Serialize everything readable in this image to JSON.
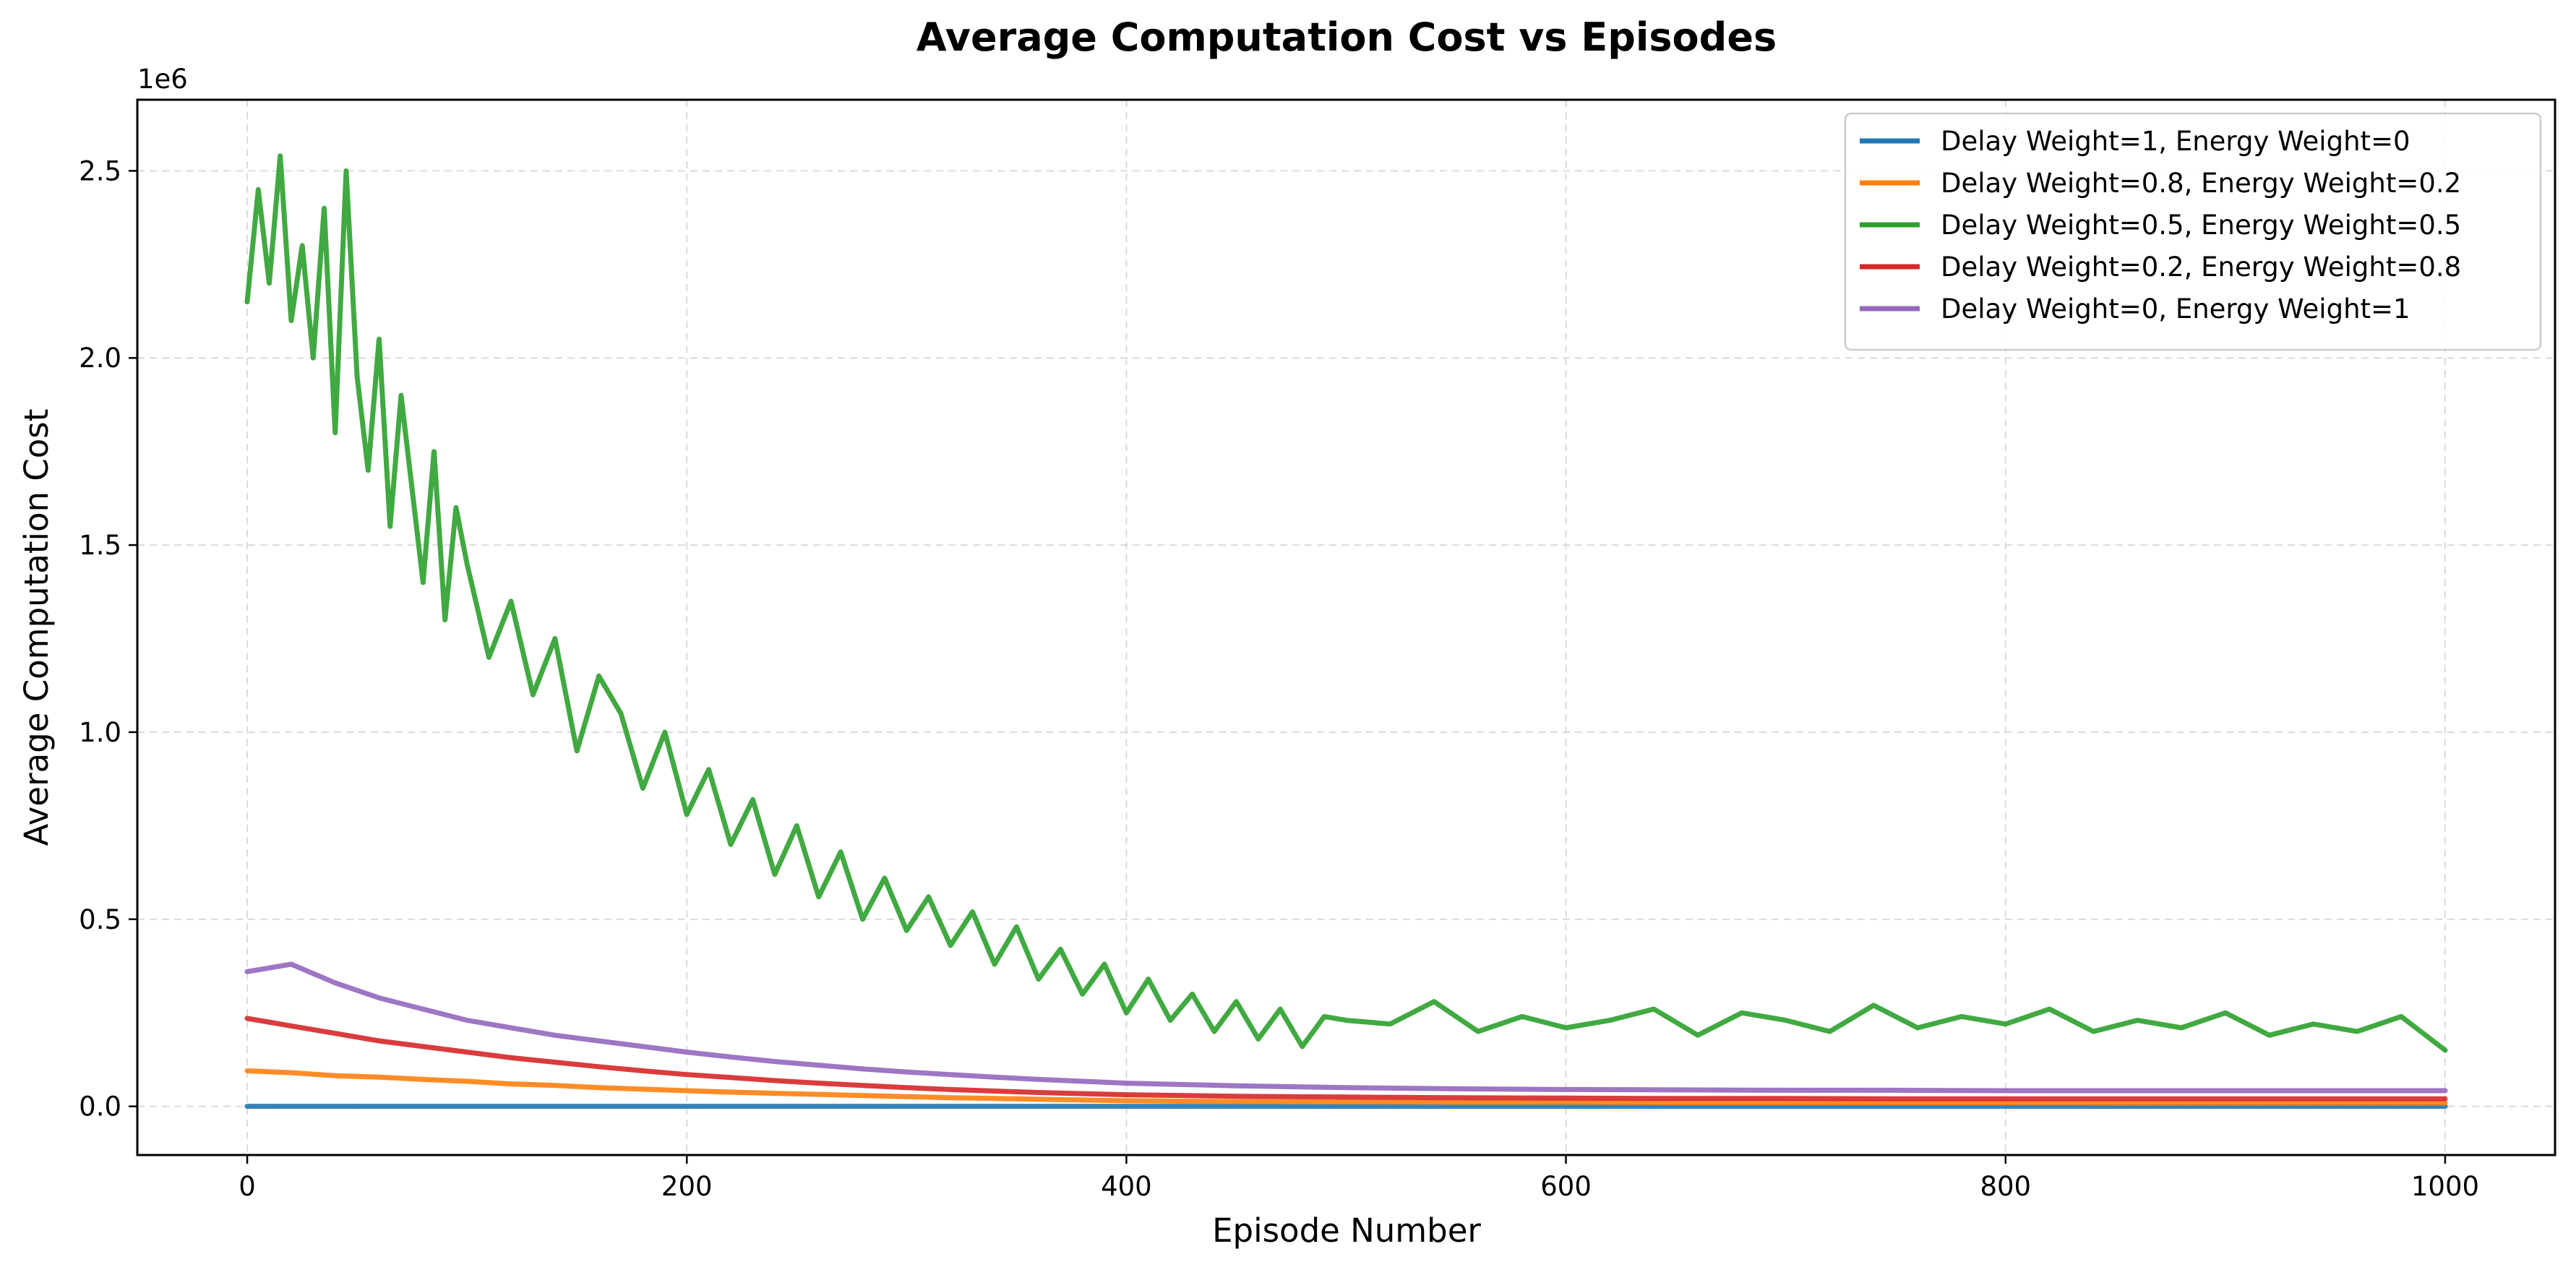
{
  "chart_data": {
    "type": "line",
    "title": "Average Computation Cost vs Episodes",
    "xlabel": "Episode Number",
    "ylabel": "Average Computation Cost",
    "y_offset_label": "1e6",
    "xlim": [
      -50,
      1050
    ],
    "ylim": [
      -130000,
      2690000
    ],
    "x_ticks": [
      0,
      200,
      400,
      600,
      800,
      1000
    ],
    "x_tick_labels": [
      "0",
      "200",
      "400",
      "600",
      "800",
      "1000"
    ],
    "y_ticks": [
      0,
      500000,
      1000000,
      1500000,
      2000000,
      2500000
    ],
    "y_tick_labels": [
      "0.0",
      "0.5",
      "1.0",
      "1.5",
      "2.0",
      "2.5"
    ],
    "grid": true,
    "legend_position": "top-right",
    "series": [
      {
        "name": "Delay Weight=1, Energy Weight=0",
        "color": "#1f77b4",
        "x": [
          0,
          100,
          200,
          300,
          400,
          500,
          600,
          700,
          800,
          900,
          1000
        ],
        "y": [
          200,
          190,
          180,
          170,
          160,
          150,
          140,
          130,
          120,
          110,
          100
        ]
      },
      {
        "name": "Delay Weight=0.8, Energy Weight=0.2",
        "color": "#ff7f0e",
        "x": [
          0,
          20,
          40,
          60,
          80,
          100,
          120,
          140,
          160,
          180,
          200,
          220,
          240,
          260,
          280,
          300,
          320,
          340,
          360,
          380,
          400,
          450,
          500,
          550,
          600,
          650,
          700,
          750,
          800,
          850,
          900,
          950,
          1000
        ],
        "y": [
          95000,
          90000,
          82000,
          78000,
          72000,
          67000,
          60000,
          56000,
          50000,
          46000,
          42000,
          38000,
          35000,
          32000,
          29000,
          26000,
          23000,
          21000,
          19000,
          17000,
          15000,
          13000,
          12000,
          11000,
          11000,
          10000,
          10000,
          10000,
          10000,
          9000,
          9000,
          9000,
          9000
        ]
      },
      {
        "name": "Delay Weight=0.5, Energy Weight=0.5",
        "color": "#2ca02c",
        "x": [
          0,
          5,
          10,
          15,
          20,
          25,
          30,
          35,
          40,
          45,
          50,
          55,
          60,
          65,
          70,
          75,
          80,
          85,
          90,
          95,
          100,
          110,
          120,
          130,
          140,
          150,
          160,
          170,
          180,
          190,
          200,
          210,
          220,
          230,
          240,
          250,
          260,
          270,
          280,
          290,
          300,
          310,
          320,
          330,
          340,
          350,
          360,
          370,
          380,
          390,
          400,
          410,
          420,
          430,
          440,
          450,
          460,
          470,
          480,
          490,
          500,
          520,
          540,
          560,
          580,
          600,
          620,
          640,
          660,
          680,
          700,
          720,
          740,
          760,
          780,
          800,
          820,
          840,
          860,
          880,
          900,
          920,
          940,
          960,
          980,
          1000
        ],
        "y": [
          2150000,
          2450000,
          2200000,
          2540000,
          2100000,
          2300000,
          2000000,
          2400000,
          1800000,
          2500000,
          1950000,
          1700000,
          2050000,
          1550000,
          1900000,
          1650000,
          1400000,
          1750000,
          1300000,
          1600000,
          1450000,
          1200000,
          1350000,
          1100000,
          1250000,
          950000,
          1150000,
          1050000,
          850000,
          1000000,
          780000,
          900000,
          700000,
          820000,
          620000,
          750000,
          560000,
          680000,
          500000,
          610000,
          470000,
          560000,
          430000,
          520000,
          380000,
          480000,
          340000,
          420000,
          300000,
          380000,
          250000,
          340000,
          230000,
          300000,
          200000,
          280000,
          180000,
          260000,
          160000,
          240000,
          230000,
          220000,
          280000,
          200000,
          240000,
          210000,
          230000,
          260000,
          190000,
          250000,
          230000,
          200000,
          270000,
          210000,
          240000,
          220000,
          260000,
          200000,
          230000,
          210000,
          250000,
          190000,
          220000,
          200000,
          240000,
          150000
        ]
      },
      {
        "name": "Delay Weight=0.2, Energy Weight=0.8",
        "color": "#d62728",
        "x": [
          0,
          20,
          40,
          60,
          80,
          100,
          120,
          140,
          160,
          180,
          200,
          220,
          240,
          260,
          280,
          300,
          320,
          340,
          360,
          380,
          400,
          450,
          500,
          550,
          600,
          650,
          700,
          750,
          800,
          850,
          900,
          950,
          1000
        ],
        "y": [
          235000,
          215000,
          195000,
          175000,
          160000,
          145000,
          130000,
          118000,
          106000,
          95000,
          85000,
          77000,
          69000,
          62000,
          56000,
          50000,
          45000,
          41000,
          37000,
          34000,
          31000,
          27000,
          25000,
          23000,
          22000,
          21000,
          21000,
          20000,
          20000,
          20000,
          20000,
          20000,
          20000
        ]
      },
      {
        "name": "Delay Weight=0, Energy Weight=1",
        "color": "#9467bd",
        "x": [
          0,
          20,
          40,
          60,
          80,
          100,
          120,
          140,
          160,
          180,
          200,
          220,
          240,
          260,
          280,
          300,
          320,
          340,
          360,
          380,
          400,
          450,
          500,
          550,
          600,
          650,
          700,
          750,
          800,
          850,
          900,
          950,
          1000
        ],
        "y": [
          360000,
          380000,
          330000,
          290000,
          260000,
          230000,
          210000,
          190000,
          175000,
          160000,
          145000,
          132000,
          120000,
          110000,
          100000,
          92000,
          85000,
          78000,
          72000,
          67000,
          62000,
          55000,
          50000,
          47000,
          45000,
          44000,
          43000,
          43000,
          42000,
          42000,
          42000,
          42000,
          42000
        ]
      }
    ]
  }
}
